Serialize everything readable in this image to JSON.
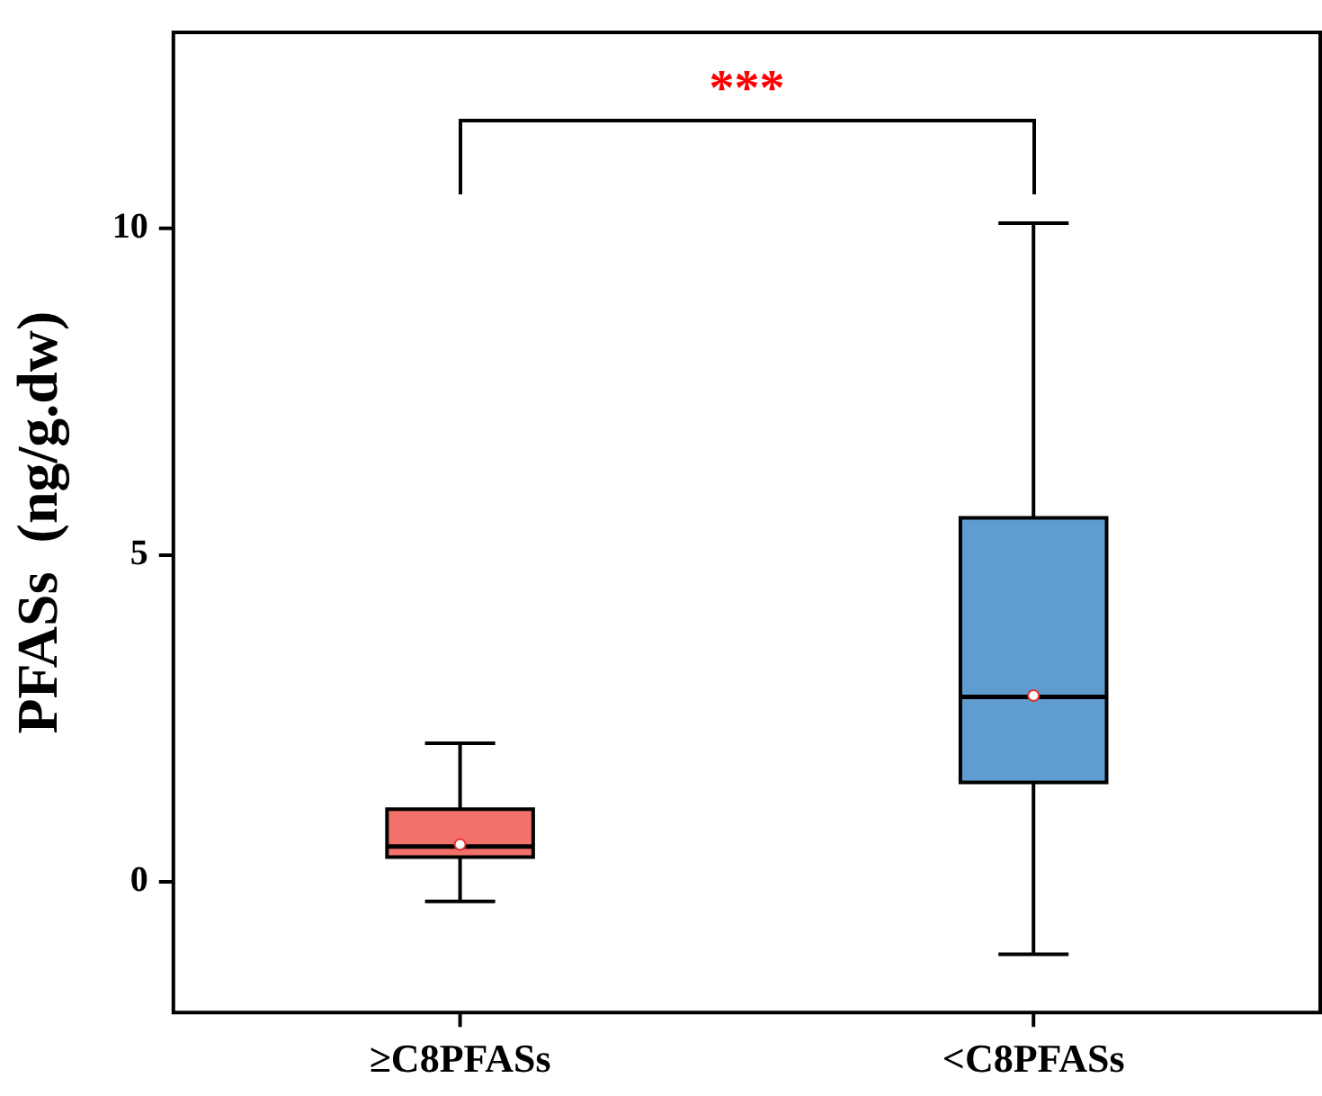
{
  "chart_data": {
    "type": "box",
    "ylabel": "PFASs  (ng/g.dw)",
    "categories": [
      "≥C8PFASs",
      "<C8PFASs"
    ],
    "colors": [
      "#f2726b",
      "#5f9ccf"
    ],
    "boxes": [
      {
        "low": -0.3,
        "q1": 0.38,
        "median": 0.54,
        "q3": 1.11,
        "high": 2.12,
        "mean": 0.57
      },
      {
        "low": -1.11,
        "q1": 1.52,
        "median": 2.83,
        "q3": 5.57,
        "high": 10.08,
        "mean": 2.85
      }
    ],
    "ylim": [
      -2,
      13
    ],
    "yticks": [
      0,
      5,
      10
    ],
    "annotations": [
      "***"
    ]
  }
}
